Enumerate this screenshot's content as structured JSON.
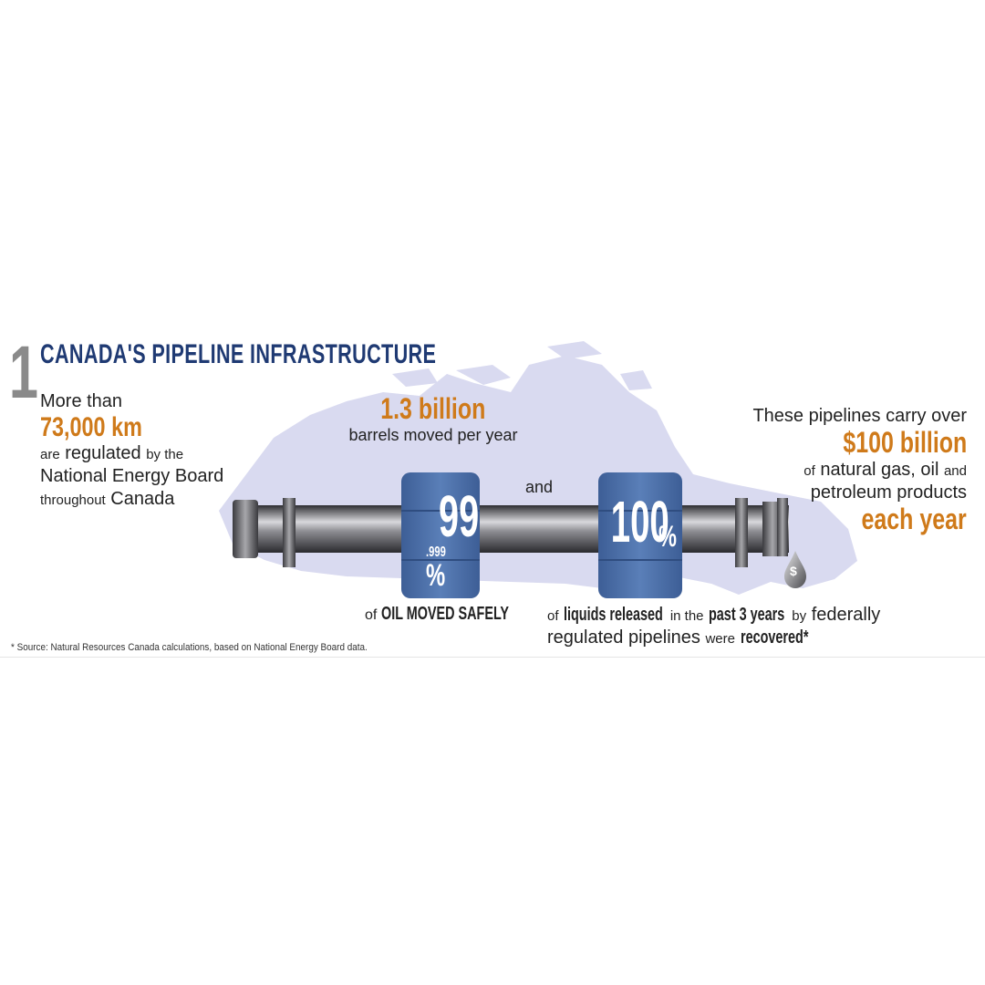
{
  "section": {
    "number": "1",
    "title": "CANADA'S PIPELINE INFRASTRUCTURE"
  },
  "left": {
    "line1": "More than",
    "distance": "73,000 km",
    "are": "are",
    "regulated": "regulated",
    "by_the": "by the",
    "board": "National Energy Board",
    "throughout": "throughout",
    "canada": "Canada"
  },
  "center": {
    "barrels_amount": "1.3 billion",
    "barrels_caption": "barrels moved per year",
    "and": "and"
  },
  "right": {
    "line1": "These pipelines carry over",
    "value": "$100 billion",
    "of": "of",
    "products1": "natural gas, oil",
    "and": "and",
    "products2": "petroleum products",
    "frequency": "each year"
  },
  "barrel1": {
    "main": "99",
    "decimal": ".999",
    "pct": "%",
    "caption_of": "of",
    "caption": "OIL MOVED SAFELY"
  },
  "barrel2": {
    "main": "100",
    "pct": "%",
    "cap_of": "of",
    "cap_liquids": "liquids released",
    "cap_in_the": "in the",
    "cap_years": "past 3 years",
    "cap_by": "by",
    "cap_federally": "federally",
    "cap_regulated": "regulated pipelines",
    "cap_were": "were",
    "cap_recovered": "recovered*"
  },
  "drop_symbol": "$",
  "source_note": "* Source: Natural Resources Canada calculations, based on National Energy Board data.",
  "colors": {
    "title_navy": "#1f3a73",
    "accent_orange": "#cf7a1a",
    "barrel_blue": "#4a6ea8",
    "map_lavender": "#d9daf0",
    "pipe_gray": "#6e6e72"
  }
}
